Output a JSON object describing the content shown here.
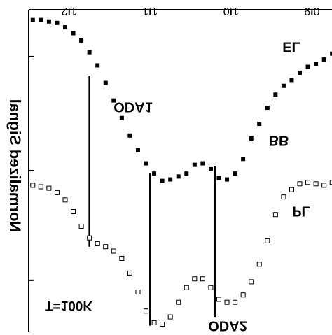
{
  "chart_data": {
    "type": "scatter",
    "title": "",
    "xlabel": "",
    "ylabel": "Normalized Signal",
    "mirrored_horizontally": true,
    "x_axis_position": "top",
    "x_tick_labels": [
      "0.9",
      "1.0",
      "1.1",
      "1.2"
    ],
    "xlim": [
      0.87,
      1.25
    ],
    "ylim": [
      0,
      2.2
    ],
    "annotations": {
      "temperature": "T=100K",
      "oda1": "ODA1",
      "oda2": "ODA2",
      "bb": "BB",
      "el_label": "EL",
      "pl_label": "PL"
    },
    "vertical_markers": [
      {
        "label": "ODA1",
        "x": 1.02,
        "y_top": 1.13,
        "y_bottom": 0.1
      },
      {
        "label": "ODA2",
        "x": 1.1,
        "y_top": 1.08,
        "y_bottom": 0.04
      },
      {
        "label": "BB",
        "x": 1.175,
        "y_top": 1.75,
        "y_bottom": 0.58
      }
    ],
    "series": [
      {
        "name": "EL",
        "marker": "filled-square",
        "x": [
          0.875,
          0.885,
          0.895,
          0.905,
          0.915,
          0.925,
          0.935,
          0.945,
          0.955,
          0.965,
          0.975,
          0.985,
          0.995,
          1.005,
          1.015,
          1.025,
          1.035,
          1.045,
          1.055,
          1.065,
          1.075,
          1.085,
          1.095,
          1.105,
          1.115,
          1.125,
          1.135,
          1.145,
          1.155,
          1.165,
          1.175,
          1.185,
          1.195,
          1.205,
          1.215,
          1.225,
          1.235,
          1.245
        ],
        "values": [
          1.9,
          1.86,
          1.83,
          1.81,
          1.77,
          1.72,
          1.68,
          1.62,
          1.53,
          1.42,
          1.32,
          1.18,
          1.08,
          1.04,
          1.05,
          1.11,
          1.15,
          1.14,
          1.08,
          1.06,
          1.04,
          1.03,
          1.08,
          1.15,
          1.24,
          1.34,
          1.46,
          1.58,
          1.7,
          1.82,
          1.91,
          1.99,
          2.04,
          2.08,
          2.11,
          2.12,
          2.13,
          2.13
        ]
      },
      {
        "name": "PL",
        "marker": "open-square",
        "x": [
          0.875,
          0.885,
          0.895,
          0.905,
          0.915,
          0.925,
          0.935,
          0.945,
          0.955,
          0.965,
          0.975,
          0.985,
          0.995,
          1.005,
          1.015,
          1.025,
          1.035,
          1.045,
          1.055,
          1.065,
          1.075,
          1.085,
          1.095,
          1.105,
          1.115,
          1.125,
          1.135,
          1.145,
          1.155,
          1.165,
          1.175,
          1.185,
          1.195,
          1.205,
          1.215,
          1.225,
          1.235,
          1.245
        ],
        "values": [
          1.02,
          1.0,
          1.01,
          1.02,
          1.01,
          0.97,
          0.92,
          0.8,
          0.62,
          0.46,
          0.34,
          0.25,
          0.2,
          0.2,
          0.22,
          0.3,
          0.36,
          0.36,
          0.3,
          0.2,
          0.1,
          0.05,
          0.06,
          0.14,
          0.27,
          0.4,
          0.5,
          0.55,
          0.58,
          0.6,
          0.64,
          0.72,
          0.82,
          0.9,
          0.95,
          0.98,
          0.99,
          1.0
        ]
      }
    ]
  }
}
